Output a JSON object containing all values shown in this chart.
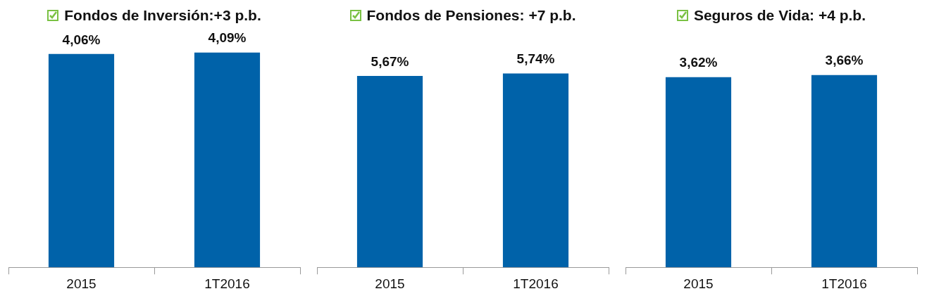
{
  "chart_data": [
    {
      "type": "bar",
      "title": "Fondos de Inversión:+3 p.b.",
      "categories": [
        "2015",
        "1T2016"
      ],
      "values": [
        4.06,
        4.09
      ],
      "value_labels": [
        "4,06%",
        "4,09%"
      ],
      "color": "#0062a9",
      "tick_labels": "x",
      "grid": false,
      "legend": false
    },
    {
      "type": "bar",
      "title": "Fondos de Pensiones: +7 p.b.",
      "categories": [
        "2015",
        "1T2016"
      ],
      "values": [
        5.67,
        5.74
      ],
      "value_labels": [
        "5,67%",
        "5,74%"
      ],
      "color": "#0062a9",
      "tick_labels": "x",
      "grid": false,
      "legend": false
    },
    {
      "type": "bar",
      "title": "Seguros de Vida: +4 p.b.",
      "categories": [
        "2015",
        "1T2016"
      ],
      "values": [
        3.62,
        3.66
      ],
      "value_labels": [
        "3,62%",
        "3,66%"
      ],
      "color": "#0062a9",
      "tick_labels": "x",
      "grid": false,
      "legend": false
    }
  ]
}
